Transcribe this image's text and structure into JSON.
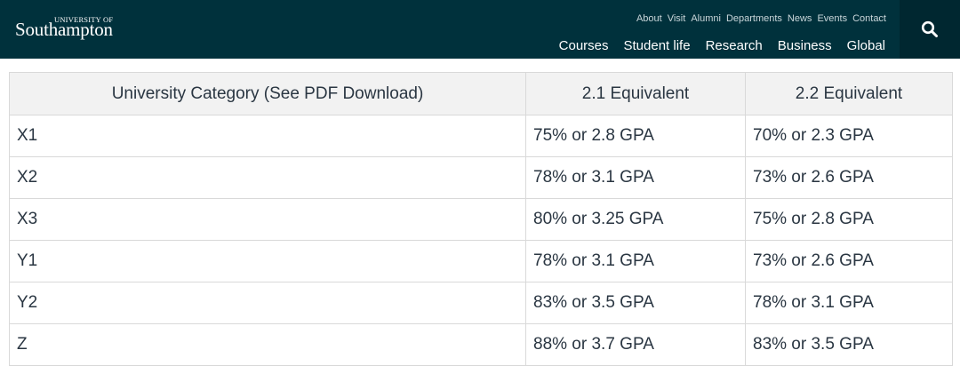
{
  "header": {
    "logo_small": "UNIVERSITY OF",
    "logo_main": "Southampton",
    "utility_nav": [
      "About",
      "Visit",
      "Alumni",
      "Departments",
      "News",
      "Events",
      "Contact"
    ],
    "main_nav": [
      "Courses",
      "Student life",
      "Research",
      "Business",
      "Global"
    ],
    "search_icon": "search-icon",
    "colors": {
      "background": "#00313c",
      "search_bg": "#002730"
    }
  },
  "table": {
    "headers": [
      "University Category (See PDF Download)",
      "2.1 Equivalent",
      "2.2 Equivalent"
    ],
    "rows": [
      [
        "X1",
        "75% or 2.8 GPA",
        "70% or 2.3 GPA"
      ],
      [
        "X2",
        "78% or 3.1 GPA",
        "73% or 2.6 GPA"
      ],
      [
        "X3",
        "80% or 3.25 GPA",
        "75% or 2.8 GPA"
      ],
      [
        "Y1",
        "78% or 3.1 GPA",
        "73% or 2.6 GPA"
      ],
      [
        "Y2",
        "83% or 3.5 GPA",
        "78% or 3.1 GPA"
      ],
      [
        "Z",
        "88% or 3.7 GPA",
        "83% or 3.5 GPA"
      ]
    ]
  }
}
